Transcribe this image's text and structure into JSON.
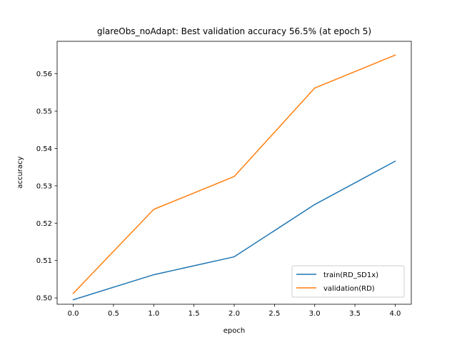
{
  "chart_data": {
    "type": "line",
    "title": "glareObs_noAdapt: Best validation accuracy 56.5% (at epoch 5)",
    "xlabel": "epoch",
    "ylabel": "accuracy",
    "xlim": [
      -0.2,
      4.2
    ],
    "ylim": [
      0.4983,
      0.5687
    ],
    "x_ticks": [
      0.0,
      0.5,
      1.0,
      1.5,
      2.0,
      2.5,
      3.0,
      3.5,
      4.0
    ],
    "x_tick_labels": [
      "0.0",
      "0.5",
      "1.0",
      "1.5",
      "2.0",
      "2.5",
      "3.0",
      "3.5",
      "4.0"
    ],
    "y_ticks": [
      0.5,
      0.51,
      0.52,
      0.53,
      0.54,
      0.55,
      0.56
    ],
    "y_tick_labels": [
      "0.50",
      "0.51",
      "0.52",
      "0.53",
      "0.54",
      "0.55",
      "0.56"
    ],
    "x": [
      0,
      1,
      2,
      3,
      4
    ],
    "series": [
      {
        "name": "train(RD_SD1x)",
        "color": "#1f77b4",
        "values": [
          0.4995,
          0.5062,
          0.511,
          0.525,
          0.5366
        ]
      },
      {
        "name": "validation(RD)",
        "color": "#ff7f0e",
        "values": [
          0.5012,
          0.5237,
          0.5325,
          0.5562,
          0.565
        ]
      }
    ],
    "grid": false,
    "legend_position": "lower-right"
  }
}
